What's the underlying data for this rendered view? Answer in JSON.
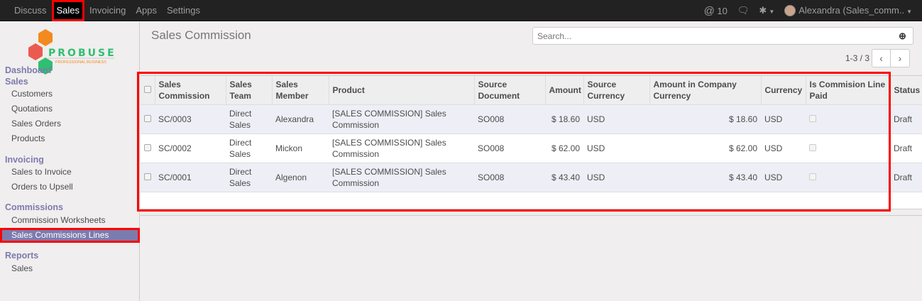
{
  "topbar": {
    "menu": [
      "Discuss",
      "Sales",
      "Invoicing",
      "Apps",
      "Settings"
    ],
    "active": "Sales",
    "mentions": "10",
    "user": "Alexandra (Sales_comm..",
    "icons": [
      "at-icon",
      "chat-icon",
      "bug-icon",
      "avatar"
    ]
  },
  "logo": {
    "text": "PROBUSE",
    "tagline": "PROFESSIONAL BUSINESS",
    "colors": [
      "#f28a1e",
      "#ec5a4f",
      "#2fbf71"
    ]
  },
  "sidebar": {
    "dashboard": "Dashboard",
    "sales": "Sales",
    "sales_items": [
      "Customers",
      "Quotations",
      "Sales Orders",
      "Products"
    ],
    "invoicing": "Invoicing",
    "invoicing_items": [
      "Sales to Invoice",
      "Orders to Upsell"
    ],
    "commissions": "Commissions",
    "commissions_items": [
      "Commission Worksheets",
      "Sales Commissions Lines"
    ],
    "reports": "Reports",
    "reports_items": [
      "Sales"
    ],
    "active": "Sales Commissions Lines"
  },
  "main": {
    "title": "Sales Commission",
    "search_placeholder": "Search...",
    "pager": "1-3 / 3",
    "columns": [
      "Sales Commission",
      "Sales Team",
      "Sales Member",
      "Product",
      "Source Document",
      "Amount",
      "Source Currency",
      "Amount in Company Currency",
      "Currency",
      "Is Commision Line Paid",
      "Status"
    ],
    "rows": [
      [
        "SC/0003",
        "Direct Sales",
        "Alexandra",
        "[SALES COMMISSION] Sales Commission",
        "SO008",
        "$ 18.60",
        "USD",
        "$ 18.60",
        "USD",
        "false",
        "Draft"
      ],
      [
        "SC/0002",
        "Direct Sales",
        "Mickon",
        "[SALES COMMISSION] Sales Commission",
        "SO008",
        "$ 62.00",
        "USD",
        "$ 62.00",
        "USD",
        "false",
        "Draft"
      ],
      [
        "SC/0001",
        "Direct Sales",
        "Algenon",
        "[SALES COMMISSION] Sales Commission",
        "SO008",
        "$ 43.40",
        "USD",
        "$ 43.40",
        "USD",
        "false",
        "Draft"
      ]
    ]
  },
  "colors": {
    "accent": "#7c7bad",
    "highlight": "#ff0000",
    "topbar": "#222222"
  }
}
